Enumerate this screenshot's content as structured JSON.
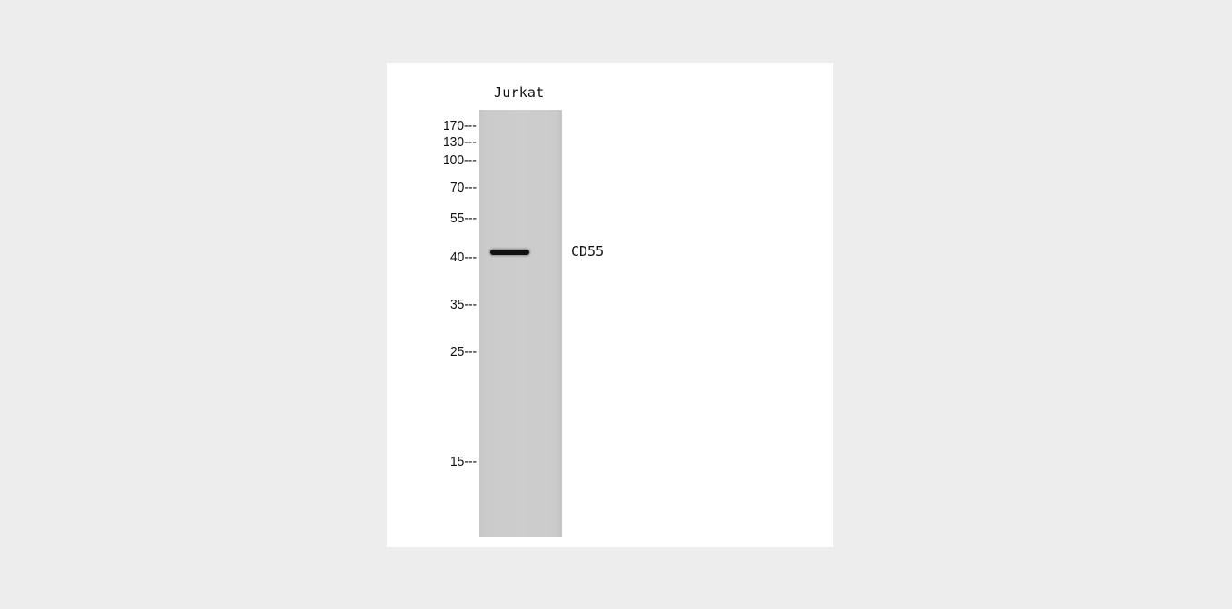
{
  "blot": {
    "lane_label": "Jurkat",
    "target_label": "CD55",
    "markers": [
      {
        "label": "170---"
      },
      {
        "label": "130---"
      },
      {
        "label": "100---"
      },
      {
        "label": "70---"
      },
      {
        "label": "55---"
      },
      {
        "label": "40---"
      },
      {
        "label": "35---"
      },
      {
        "label": "25---"
      },
      {
        "label": "15---"
      }
    ]
  }
}
